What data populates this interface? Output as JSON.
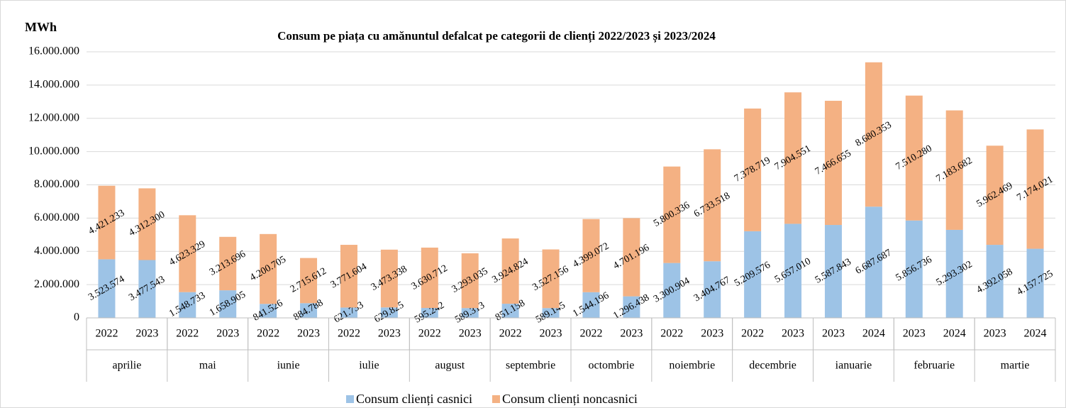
{
  "chart_data": {
    "type": "stacked_bar",
    "title": "Consum pe piața cu amănuntul defalcat pe categorii de clienți 2022/2023 și 2023/2024",
    "y_label": "MWh",
    "categories": [
      "2022",
      "2023",
      "2022",
      "2023",
      "2022",
      "2023",
      "2022",
      "2023",
      "2022",
      "2023",
      "2022",
      "2023",
      "2022",
      "2023",
      "2022",
      "2023",
      "2022",
      "2023",
      "2023",
      "2024",
      "2023",
      "2024",
      "2023",
      "2024"
    ],
    "groups": [
      "aprilie",
      "mai",
      "iunie",
      "iulie",
      "august",
      "septembrie",
      "octombrie",
      "noiembrie",
      "decembrie",
      "ianuarie",
      "februarie",
      "martie"
    ],
    "series": [
      {
        "name": "Consum clienți casnici",
        "color": "#9dc3e6",
        "values": [
          3523574,
          3477543,
          1548733,
          1658905,
          841526,
          884788,
          621733,
          629825,
          595242,
          589313,
          851158,
          589145,
          1544196,
          1296438,
          3300904,
          3404767,
          5209576,
          5657010,
          5587843,
          6687687,
          5856736,
          5293302,
          4392058,
          4157725
        ],
        "value_labels": [
          "3.523.574",
          "3.477.543",
          "1.548.733",
          "1.658.905",
          "841.526",
          "884.788",
          "621.733",
          "629.825",
          "595.242",
          "589.313",
          "851.158",
          "589.145",
          "1.544.196",
          "1.296.438",
          "3.300.904",
          "3.404.767",
          "5.209.576",
          "5.657.010",
          "5.587.843",
          "6.687.687",
          "5.856.736",
          "5.293.302",
          "4.392.058",
          "4.157.725"
        ]
      },
      {
        "name": "Consum clienți noncasnici",
        "color": "#f4b183",
        "values": [
          4421233,
          4312300,
          4623329,
          3213696,
          4200705,
          2715612,
          3771604,
          3473338,
          3630712,
          3293035,
          3924824,
          3527156,
          4399072,
          4701196,
          5800336,
          6733518,
          7378719,
          7904551,
          7466655,
          8680353,
          7510280,
          7183682,
          5962469,
          7174021
        ],
        "value_labels": [
          "4.421.233",
          "4.312.300",
          "4.623.329",
          "3.213.696",
          "4.200.705",
          "2.715.612",
          "3.771.604",
          "3.473.338",
          "3.630.712",
          "3.293.035",
          "3.924.824",
          "3.527.156",
          "4.399.072",
          "4.701.196",
          "5.800.336",
          "6.733.518",
          "7.378.719",
          "7.904.551",
          "7.466.655",
          "8.680.353",
          "7.510.280",
          "7.183.682",
          "5.962.469",
          "7.174.021"
        ]
      }
    ],
    "ylim": [
      0,
      16000000
    ],
    "yticks": [
      0,
      {
        "value": 2000000,
        "label": "2.000.000"
      },
      {
        "value": 4000000,
        "label": "4.000.000"
      },
      {
        "value": 6000000,
        "label": "6.000.000"
      },
      {
        "value": 8000000,
        "label": "8.000.000"
      },
      {
        "value": 10000000,
        "label": "10.000.000"
      },
      {
        "value": 12000000,
        "label": "12.000.000"
      },
      {
        "value": 14000000,
        "label": "14.000.000"
      },
      {
        "value": 16000000,
        "label": "16.000.000"
      }
    ],
    "grid": true,
    "legend": "bottom"
  }
}
